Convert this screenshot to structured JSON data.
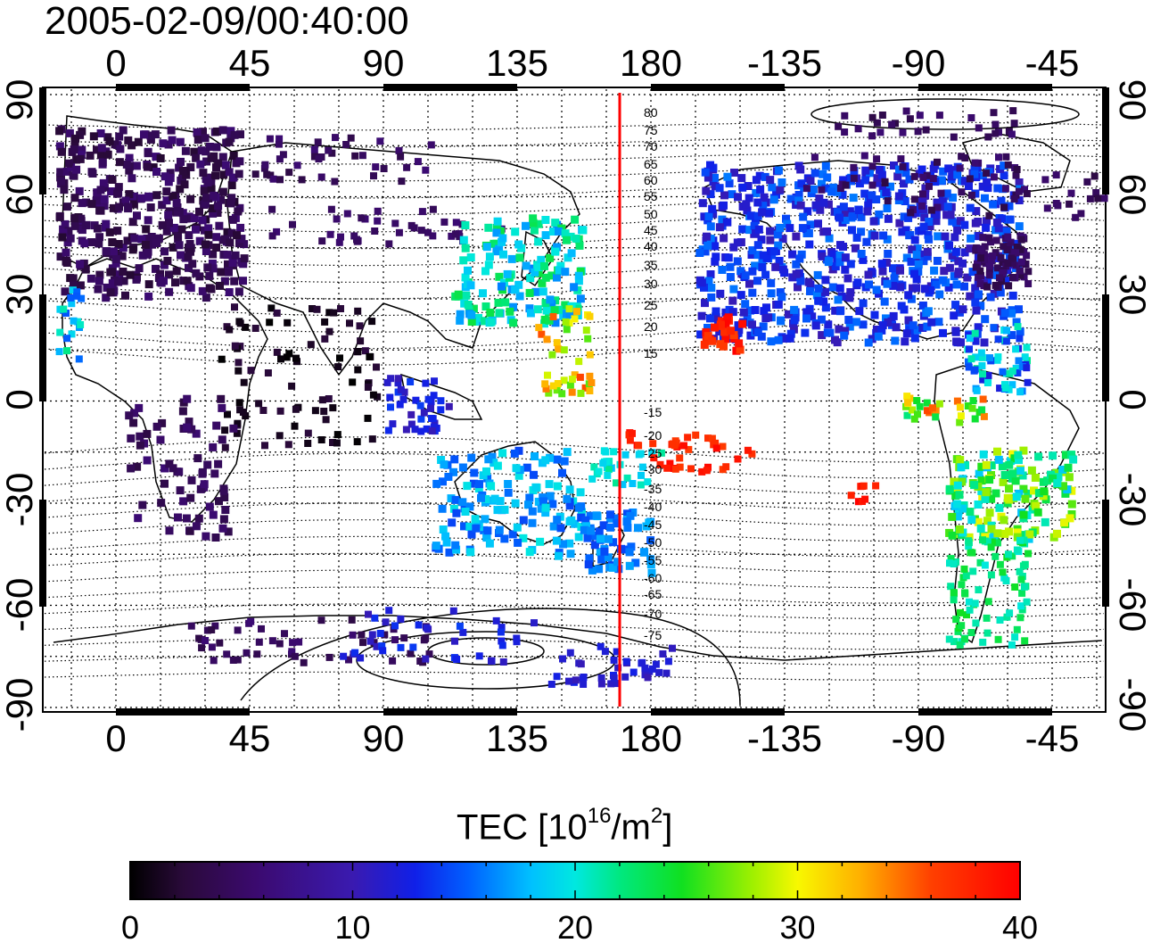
{
  "title": "2005-02-09/00:40:00",
  "map": {
    "top_lon_labels": [
      "0",
      "45",
      "90",
      "135",
      "180",
      "-135",
      "-90",
      "-45"
    ],
    "bottom_lon_labels": [
      "0",
      "45",
      "90",
      "135",
      "180",
      "-135",
      "-90",
      "-45"
    ],
    "left_lat_labels": [
      "90",
      "60",
      "30",
      "0",
      "-30",
      "-60",
      "-90"
    ],
    "right_lat_labels": [
      "90",
      "60",
      "30",
      "0",
      "-30",
      "-60",
      "-90"
    ],
    "contour_labels_north": [
      "80",
      "75",
      "70",
      "65",
      "60",
      "55",
      "50",
      "45",
      "40",
      "35",
      "30",
      "25",
      "20",
      "15"
    ],
    "contour_labels_south": [
      "-15",
      "-20",
      "-25",
      "-30",
      "-35",
      "-40",
      "-45",
      "-50",
      "-55",
      "-60",
      "-65",
      "-70",
      "-75"
    ],
    "meridian_line_color": "#ff0000"
  },
  "colorbar": {
    "label_prefix": "TEC  [10",
    "label_exp1": "16",
    "label_mid": "/m",
    "label_exp2": "2",
    "label_suffix": "]",
    "ticks": [
      "0",
      "10",
      "20",
      "30",
      "40"
    ],
    "min": 0,
    "max": 40
  }
}
